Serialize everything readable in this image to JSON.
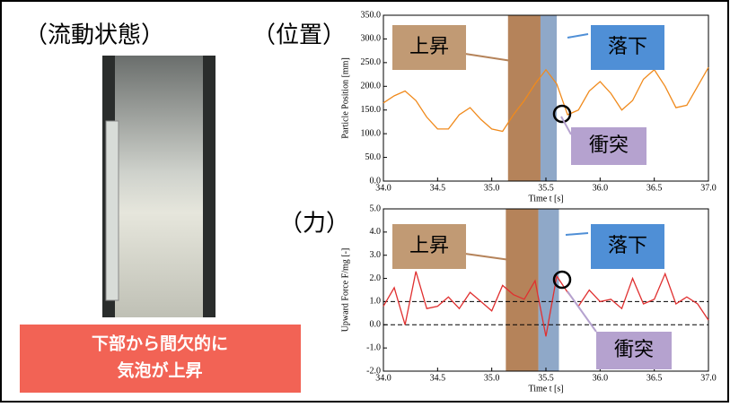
{
  "labels": {
    "flow": "（流動状態）",
    "position": "（位置）",
    "force": "（力）",
    "note": [
      "下部から間欠的に",
      "気泡が上昇"
    ]
  },
  "chart_data": [
    {
      "type": "line",
      "y_label": "Particle Position [mm]",
      "x_label": "Time t [s]",
      "x": [
        34.0,
        34.1,
        34.2,
        34.3,
        34.4,
        34.5,
        34.6,
        34.7,
        34.8,
        34.9,
        35.0,
        35.1,
        35.2,
        35.3,
        35.4,
        35.5,
        35.6,
        35.7,
        35.8,
        35.9,
        36.0,
        36.1,
        36.2,
        36.3,
        36.4,
        36.5,
        36.6,
        36.7,
        36.8,
        36.9,
        37.0
      ],
      "series": [
        {
          "color": "#f08a1c",
          "values": [
            165,
            180,
            190,
            170,
            135,
            110,
            110,
            140,
            155,
            130,
            110,
            105,
            140,
            170,
            205,
            235,
            205,
            140,
            150,
            190,
            210,
            185,
            150,
            170,
            215,
            235,
            200,
            155,
            160,
            200,
            240
          ]
        }
      ],
      "xlim": [
        34,
        37
      ],
      "xticks": [
        {
          "value": 34,
          "label": "34.0"
        },
        {
          "value": 34.5,
          "label": "34.5"
        },
        {
          "value": 35,
          "label": "35.0"
        },
        {
          "value": 35.5,
          "label": "35.5"
        },
        {
          "value": 36,
          "label": "36.0"
        },
        {
          "value": 36.5,
          "label": "36.5"
        },
        {
          "value": 37,
          "label": "37.0"
        }
      ],
      "ylim": [
        0,
        350
      ],
      "yticks": [
        {
          "value": 0,
          "label": "0.0"
        },
        {
          "value": 50,
          "label": "50.0"
        },
        {
          "value": 100,
          "label": "100.0"
        },
        {
          "value": 150,
          "label": "150.0"
        },
        {
          "value": 200,
          "label": "200.0"
        },
        {
          "value": 250,
          "label": "250.0"
        },
        {
          "value": 300,
          "label": "300.0"
        },
        {
          "value": 350,
          "label": "350.0"
        }
      ],
      "spans": [
        {
          "x": [
            35.15,
            35.45
          ],
          "color": "#b5835a"
        },
        {
          "x": [
            35.45,
            35.6
          ],
          "color": "#8fa8c8"
        }
      ],
      "annotations": [
        "上昇",
        "落下",
        "衝突"
      ]
    },
    {
      "type": "line",
      "y_label": "Upward Force F/mg [-]",
      "x_label": "Time t [s]",
      "x": [
        34.0,
        34.1,
        34.2,
        34.3,
        34.4,
        34.5,
        34.6,
        34.7,
        34.8,
        34.9,
        35.0,
        35.1,
        35.2,
        35.3,
        35.4,
        35.5,
        35.6,
        35.7,
        35.8,
        35.9,
        36.0,
        36.1,
        36.2,
        36.3,
        36.4,
        36.5,
        36.6,
        36.7,
        36.8,
        36.9,
        37.0
      ],
      "series": [
        {
          "color": "#e03030",
          "values": [
            0.8,
            1.6,
            0.0,
            2.3,
            0.7,
            0.8,
            1.2,
            0.7,
            1.4,
            1.0,
            0.6,
            1.7,
            1.3,
            1.1,
            1.9,
            -0.5,
            2.1,
            1.4,
            0.8,
            1.5,
            1.0,
            1.1,
            0.7,
            2.0,
            0.9,
            1.1,
            2.2,
            0.9,
            1.2,
            0.9,
            0.2
          ]
        }
      ],
      "xlim": [
        34,
        37
      ],
      "xticks": [
        {
          "value": 34,
          "label": "34.0"
        },
        {
          "value": 34.5,
          "label": "34.5"
        },
        {
          "value": 35,
          "label": "35.0"
        },
        {
          "value": 35.5,
          "label": "35.5"
        },
        {
          "value": 36,
          "label": "36.0"
        },
        {
          "value": 36.5,
          "label": "36.5"
        },
        {
          "value": 37,
          "label": "37.0"
        }
      ],
      "ylim": [
        -2,
        5
      ],
      "yticks": [
        {
          "value": -2,
          "label": "-2.0"
        },
        {
          "value": -1,
          "label": "-1.0"
        },
        {
          "value": 0,
          "label": "0.0"
        },
        {
          "value": 1,
          "label": "1.0"
        },
        {
          "value": 2,
          "label": "2.0"
        },
        {
          "value": 3,
          "label": "3.0"
        },
        {
          "value": 4,
          "label": "4.0"
        },
        {
          "value": 5,
          "label": "5.0"
        }
      ],
      "hlines": [
        0,
        1
      ],
      "spans": [
        {
          "x": [
            35.13,
            35.43
          ],
          "color": "#b5835a"
        },
        {
          "x": [
            35.43,
            35.62
          ],
          "color": "#8fa8c8"
        }
      ],
      "annotations": [
        "上昇",
        "落下",
        "衝突"
      ]
    }
  ]
}
